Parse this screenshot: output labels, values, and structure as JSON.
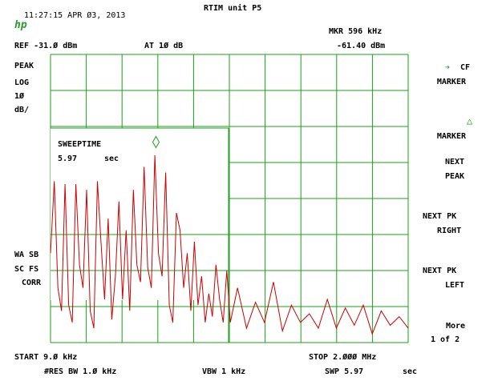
{
  "header": {
    "timestamp": "11:27:15 APR Ø3, 2013",
    "title": "RTIM unit P5",
    "marker_label": "MKR 596 kHz",
    "marker_value": "-61.40 dBm",
    "ref_level": "REF -31.Ø dBm",
    "attenuation": "AT 1Ø dB"
  },
  "left_annotations": {
    "detector": "PEAK",
    "scale_type": "LOG",
    "scale_value": "1Ø",
    "scale_unit": "dB/",
    "wa_sb": "WA SB",
    "sc_fs": "SC FS",
    "corr": "CORR"
  },
  "overlay": {
    "title": "SWEEPTIME",
    "value": "5.97",
    "unit": "sec"
  },
  "softkeys": [
    {
      "line1": "MARKER",
      "line2": "CF",
      "icon": "arrow-icon"
    },
    {
      "line1": "MARKER",
      "line2": "",
      "icon": "delta-icon"
    },
    {
      "line1": "NEXT",
      "line2": "PEAK",
      "icon": ""
    },
    {
      "line1": "NEXT PK",
      "line2": "RIGHT",
      "icon": ""
    },
    {
      "line1": "NEXT PK",
      "line2": "LEFT",
      "icon": ""
    },
    {
      "line1": "More",
      "line2": "1 of 2",
      "icon": ""
    }
  ],
  "footer": {
    "start": "START 9.Ø kHz",
    "stop": "STOP 2.ØØØ MHz",
    "rbw": "#RES BW 1.Ø kHz",
    "vbw": "VBW 1 kHz",
    "sweep": "SWP 5.97",
    "sweep_unit": "sec"
  },
  "colors": {
    "grid": "#1aa01a",
    "trace": "#cc0000",
    "marker": "#1aa01a"
  },
  "chart_data": {
    "type": "line",
    "xlabel": "",
    "ylabel": "",
    "xlim_khz": [
      9,
      2000
    ],
    "ylim_dbm": [
      -131,
      -31
    ],
    "marker": {
      "x_khz": 596,
      "y_dbm": -61.4
    },
    "series": [
      {
        "x_khz": [
          9,
          30,
          50,
          70,
          90,
          110,
          130,
          150,
          170,
          190,
          210,
          230,
          250,
          270,
          290,
          310,
          330,
          350,
          370,
          390,
          410,
          430,
          450,
          470,
          490,
          510,
          530,
          550,
          570,
          590,
          610,
          630,
          650,
          670,
          690,
          710,
          730,
          750,
          770,
          790,
          810,
          830,
          850,
          870,
          890,
          910,
          930,
          950,
          970,
          990,
          1010,
          1050,
          1100,
          1150,
          1200,
          1250,
          1300,
          1350,
          1400,
          1450,
          1500,
          1550,
          1600,
          1650,
          1700,
          1750,
          1800,
          1850,
          1900,
          1950,
          2000
        ],
        "y_dbm": [
          -100,
          -75,
          -112,
          -120,
          -76,
          -118,
          -124,
          -76,
          -104,
          -112,
          -78,
          -120,
          -126,
          -75,
          -96,
          -116,
          -88,
          -123,
          -108,
          -82,
          -116,
          -92,
          -120,
          -78,
          -104,
          -110,
          -70,
          -105,
          -112,
          -66,
          -100,
          -108,
          -72,
          -118,
          -124,
          -86,
          -92,
          -112,
          -100,
          -120,
          -96,
          -118,
          -108,
          -124,
          -114,
          -122,
          -104,
          -116,
          -124,
          -106,
          -124,
          -112,
          -126,
          -117,
          -124,
          -110,
          -127,
          -118,
          -124,
          -121,
          -126,
          -116,
          -126,
          -119,
          -125,
          -118,
          -128,
          -120,
          -125,
          -122,
          -126
        ]
      }
    ]
  }
}
